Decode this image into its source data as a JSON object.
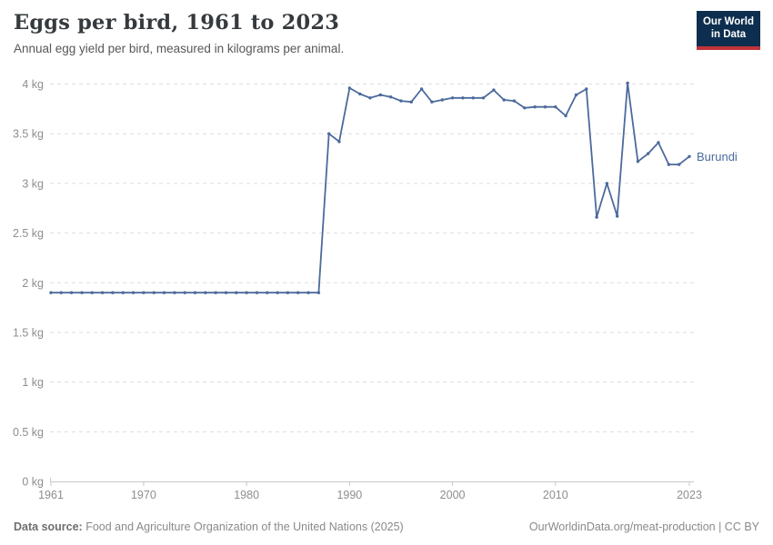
{
  "header": {
    "title": "Eggs per bird, 1961 to 2023",
    "subtitle": "Annual egg yield per bird, measured in kilograms per animal.",
    "logo_line1": "Our World",
    "logo_line2": "in Data"
  },
  "colors": {
    "series_blue": "#4c6a9c",
    "logo_navy": "#0d2e4e",
    "logo_red": "#c0343a",
    "grid_gray": "#dddddd",
    "axis_gray": "#c8c8c8",
    "tick_text_gray": "#8e8e8e"
  },
  "chart_data": {
    "type": "line",
    "title": "Eggs per bird, 1961 to 2023",
    "xlabel": "",
    "ylabel": "",
    "unit": "kg",
    "grid": "horizontal-dashed",
    "legend_position": "end-of-line-label",
    "xlim": [
      1961,
      2023
    ],
    "ylim": [
      0,
      4
    ],
    "x_ticks": [
      1961,
      1970,
      1980,
      1990,
      2000,
      2010,
      2023
    ],
    "y_ticks": [
      0,
      0.5,
      1,
      1.5,
      2,
      2.5,
      3,
      3.5,
      4
    ],
    "y_tick_labels": [
      "0 kg",
      "0.5 kg",
      "1 kg",
      "1.5 kg",
      "2 kg",
      "2.5 kg",
      "3 kg",
      "3.5 kg",
      "4 kg"
    ],
    "x": [
      1961,
      1962,
      1963,
      1964,
      1965,
      1966,
      1967,
      1968,
      1969,
      1970,
      1971,
      1972,
      1973,
      1974,
      1975,
      1976,
      1977,
      1978,
      1979,
      1980,
      1981,
      1982,
      1983,
      1984,
      1985,
      1986,
      1987,
      1988,
      1989,
      1990,
      1991,
      1992,
      1993,
      1994,
      1995,
      1996,
      1997,
      1998,
      1999,
      2000,
      2001,
      2002,
      2003,
      2004,
      2005,
      2006,
      2007,
      2008,
      2009,
      2010,
      2011,
      2012,
      2013,
      2014,
      2015,
      2016,
      2017,
      2018,
      2019,
      2020,
      2021,
      2022,
      2023
    ],
    "series": [
      {
        "name": "Burundi",
        "color": "#4c6a9c",
        "values": [
          1.9,
          1.9,
          1.9,
          1.9,
          1.9,
          1.9,
          1.9,
          1.9,
          1.9,
          1.9,
          1.9,
          1.9,
          1.9,
          1.9,
          1.9,
          1.9,
          1.9,
          1.9,
          1.9,
          1.9,
          1.9,
          1.9,
          1.9,
          1.9,
          1.9,
          1.9,
          1.9,
          3.5,
          3.42,
          3.96,
          3.9,
          3.86,
          3.89,
          3.87,
          3.83,
          3.82,
          3.95,
          3.82,
          3.84,
          3.86,
          3.86,
          3.86,
          3.86,
          3.94,
          3.84,
          3.83,
          3.76,
          3.77,
          3.77,
          3.77,
          3.68,
          3.89,
          3.95,
          2.66,
          3.0,
          2.67,
          4.01,
          3.22,
          3.3,
          3.41,
          3.19,
          3.19,
          3.27
        ]
      }
    ]
  },
  "footer": {
    "source_label": "Data source:",
    "source_text": " Food and Agriculture Organization of the United Nations (2025)",
    "credit": "OurWorldinData.org/meat-production | CC BY"
  }
}
